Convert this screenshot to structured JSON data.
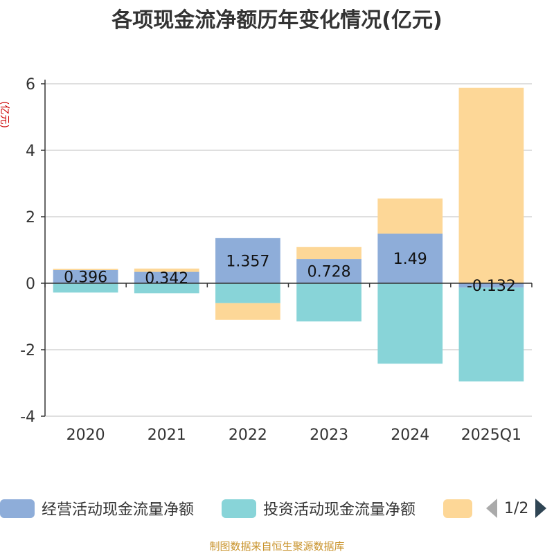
{
  "chart_data": {
    "type": "bar",
    "stacked": true,
    "title": "各项现金流净额历年变化情况(亿元)",
    "ylabel": "(亿元)",
    "categories": [
      "2020",
      "2021",
      "2022",
      "2023",
      "2024",
      "2025Q1"
    ],
    "yticks": [
      6,
      4,
      2,
      0,
      -2,
      -4
    ],
    "ylim": [
      -4,
      6
    ],
    "grid": true,
    "series": [
      {
        "name": "经营活动现金流量净额",
        "color": "#8eadd9",
        "values": [
          0.396,
          0.342,
          1.357,
          0.728,
          1.49,
          -0.132
        ]
      },
      {
        "name": "投资活动现金流量净额",
        "color": "#88d4d8",
        "values": [
          -0.28,
          -0.3,
          -0.6,
          -1.15,
          -2.42,
          -2.82
        ]
      },
      {
        "name": "",
        "color": "#fdd797",
        "values": [
          0.04,
          0.1,
          -0.5,
          0.36,
          1.06,
          5.88
        ]
      }
    ],
    "data_labels": [
      "0.396",
      "0.342",
      "1.357",
      "0.728",
      "1.49",
      "-0.132"
    ]
  },
  "legend": {
    "placement": "bottom",
    "page_indicator": "1/2",
    "prev_icon": "chevron-left-icon",
    "next_icon": "chevron-right-icon"
  },
  "source": "制图数据来自恒生聚源数据库"
}
